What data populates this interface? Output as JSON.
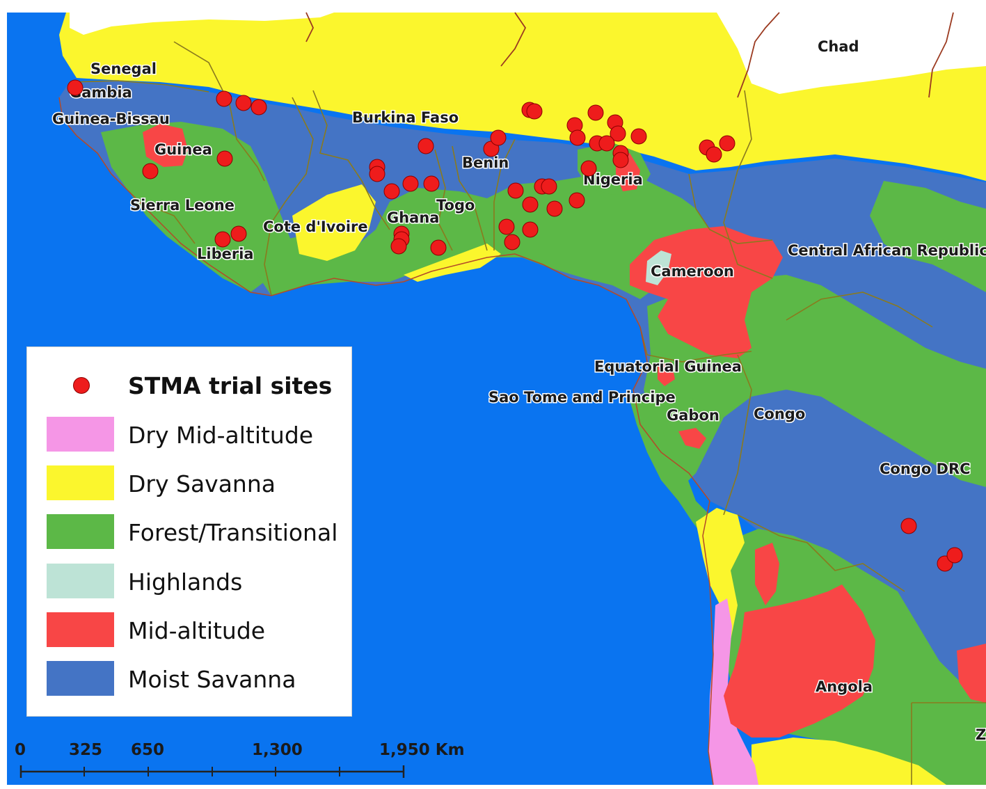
{
  "colors": {
    "ocean": "#0a74f0",
    "dry_mid_altitude": "#f596e6",
    "dry_savanna": "#fbf62d",
    "forest_transitional": "#5cb847",
    "highlands": "#bde3d6",
    "mid_altitude": "#f84646",
    "moist_savanna": "#4474c5",
    "trial_site": "#ee1c1c",
    "border": "#8a7a1e",
    "land_outside": "#ffffff"
  },
  "legend": {
    "items": [
      {
        "label": "STMA trial sites",
        "type": "dot",
        "color": "#ee1c1c"
      },
      {
        "label": "Dry Mid-altitude",
        "type": "swatch",
        "color": "#f596e6"
      },
      {
        "label": "Dry Savanna",
        "type": "swatch",
        "color": "#fbf62d"
      },
      {
        "label": "Forest/Transitional",
        "type": "swatch",
        "color": "#5cb847"
      },
      {
        "label": "Highlands",
        "type": "swatch",
        "color": "#bde3d6"
      },
      {
        "label": "Mid-altitude",
        "type": "swatch",
        "color": "#f84646"
      },
      {
        "label": "Moist Savanna",
        "type": "swatch",
        "color": "#4474c5"
      }
    ]
  },
  "country_labels": {
    "senegal": "Senegal",
    "gambia": "Gambia",
    "guinea_bissau": "Guinea-Bissau",
    "guinea": "Guinea",
    "sierra_leone": "Sierra Leone",
    "liberia": "Liberia",
    "cote_divoire": "Cote d'Ivoire",
    "burkina_faso": "Burkina Faso",
    "ghana": "Ghana",
    "togo": "Togo",
    "benin": "Benin",
    "nigeria": "Nigeria",
    "chad": "Chad",
    "cameroon": "Cameroon",
    "central_african_republic": "Central African Republic",
    "equatorial_guinea": "Equatorial Guinea",
    "sao_tome": "Sao Tome and Principe",
    "gabon": "Gabon",
    "congo": "Congo",
    "congo_drc": "Congo DRC",
    "angola": "Angola",
    "z_partial": "Z"
  },
  "scale_bar": {
    "labels": [
      "0",
      "325",
      "650",
      "1,300",
      "1,950 Km"
    ]
  }
}
